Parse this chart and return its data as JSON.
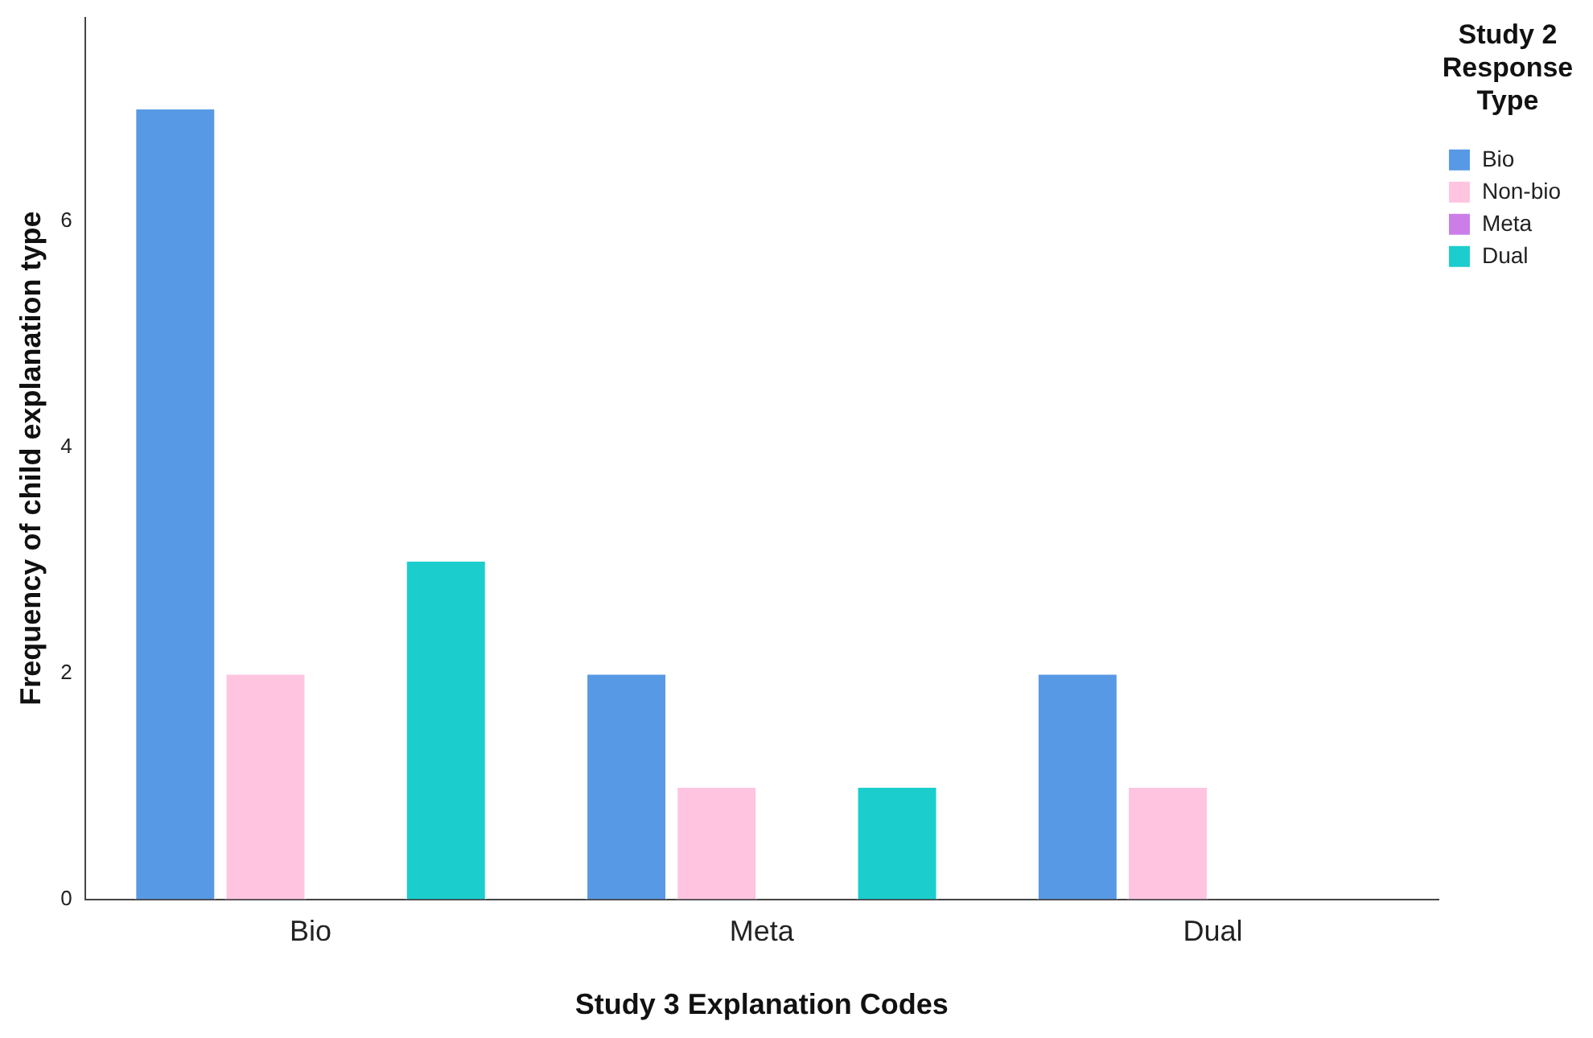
{
  "chart_data": {
    "type": "bar",
    "xlabel": "Study 3 Explanation Codes",
    "ylabel": "Frequency of child explanation type",
    "legend_title": "Study 2 Response Type",
    "categories": [
      "Bio",
      "Meta",
      "Dual"
    ],
    "series": [
      {
        "name": "Bio",
        "color": "#5899e5",
        "values": [
          7,
          2,
          2
        ]
      },
      {
        "name": "Non-bio",
        "color": "#fec4e0",
        "values": [
          2,
          1,
          1
        ]
      },
      {
        "name": "Meta",
        "color": "#cc7ee8",
        "values": [
          0,
          0,
          0
        ]
      },
      {
        "name": "Dual",
        "color": "#1ccdcd",
        "values": [
          3,
          1,
          0
        ]
      }
    ],
    "ylim": [
      0,
      7.8
    ],
    "yticks": [
      0,
      2,
      4,
      6
    ],
    "grid": false,
    "legend": "top right"
  }
}
